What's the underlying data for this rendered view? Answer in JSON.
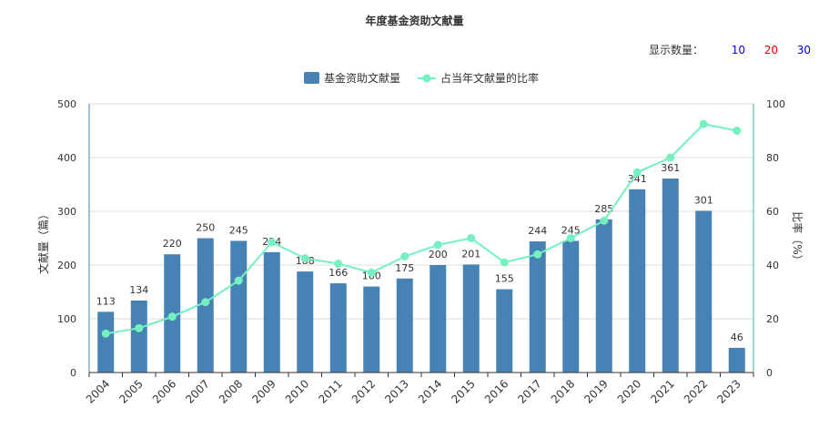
{
  "title": "年度基金资助文献量",
  "display_count": {
    "label": "显示数量：",
    "options": [
      {
        "value": "10",
        "color": "#0000ee"
      },
      {
        "value": "20",
        "color": "#ee0000"
      },
      {
        "value": "30",
        "color": "#0000ee"
      }
    ]
  },
  "legend": {
    "bar_label": "基金资助文献量",
    "line_label": "占当年文献量的比率"
  },
  "colors": {
    "bar": "#4682b4",
    "line": "#74f1bf",
    "left_axis": "#4682b4",
    "right_axis": "#3cb0a0",
    "grid": "#dcdcdc"
  },
  "chart_data": {
    "type": "bar",
    "categories": [
      "2004",
      "2005",
      "2006",
      "2007",
      "2008",
      "2009",
      "2010",
      "2011",
      "2012",
      "2013",
      "2014",
      "2015",
      "2016",
      "2017",
      "2018",
      "2019",
      "2020",
      "2021",
      "2022",
      "2023"
    ],
    "series": [
      {
        "name": "基金资助文献量",
        "type": "bar",
        "axis": "left",
        "values": [
          113,
          134,
          220,
          250,
          245,
          224,
          188,
          166,
          160,
          175,
          200,
          201,
          155,
          244,
          245,
          285,
          341,
          361,
          301,
          46
        ]
      },
      {
        "name": "占当年文献量的比率",
        "type": "line",
        "axis": "right",
        "values": [
          14.5,
          16.5,
          20.8,
          26.2,
          34.2,
          48.5,
          42.5,
          40.5,
          37.2,
          43.2,
          47.5,
          50.0,
          41.0,
          44.0,
          50.0,
          56.5,
          74.5,
          80.0,
          92.5,
          90.0
        ]
      }
    ],
    "ylabel": "文献量（篇）",
    "y2label": "比率（%）",
    "ylim": [
      0,
      500
    ],
    "y2lim": [
      0,
      100
    ],
    "yticks": [
      "0",
      "100",
      "200",
      "300",
      "400",
      "500"
    ],
    "y2ticks": [
      "0",
      "20",
      "40",
      "60",
      "80",
      "100"
    ],
    "grid": true,
    "legend_position": "top-center"
  }
}
